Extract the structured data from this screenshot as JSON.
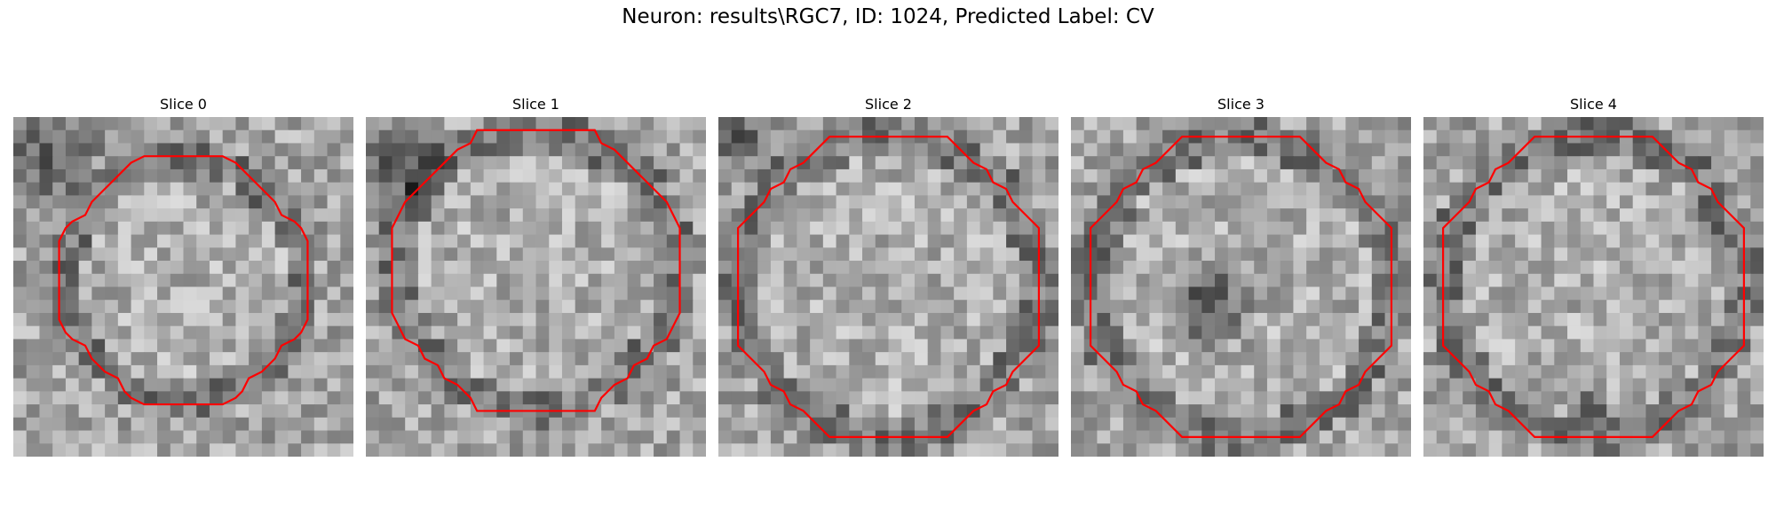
{
  "figure": {
    "title": "Neuron: results\\RGC7, ID: 1024, Predicted Label: CV"
  },
  "colors": {
    "contour": "#ff0000",
    "background": "#ffffff"
  },
  "slices": [
    {
      "title": "Slice 0",
      "center": [
        0.5,
        0.48
      ],
      "radius": [
        0.36,
        0.36
      ],
      "dark_patches": [
        [
          0.1,
          0.12,
          0.2
        ]
      ]
    },
    {
      "title": "Slice 1",
      "center": [
        0.5,
        0.45
      ],
      "radius": [
        0.42,
        0.42
      ],
      "dark_patches": [
        [
          0.1,
          0.15,
          0.18
        ]
      ]
    },
    {
      "title": "Slice 2",
      "center": [
        0.5,
        0.5
      ],
      "radius": [
        0.45,
        0.45
      ],
      "dark_patches": [
        [
          0.05,
          0.05,
          0.15
        ]
      ]
    },
    {
      "title": "Slice 3",
      "center": [
        0.5,
        0.5
      ],
      "radius": [
        0.45,
        0.45
      ],
      "dark_patches": [
        [
          0.4,
          0.55,
          0.18
        ]
      ]
    },
    {
      "title": "Slice 4",
      "center": [
        0.5,
        0.5
      ],
      "radius": [
        0.45,
        0.45
      ],
      "dark_patches": [
        [
          0.5,
          0.85,
          0.06
        ]
      ]
    }
  ]
}
